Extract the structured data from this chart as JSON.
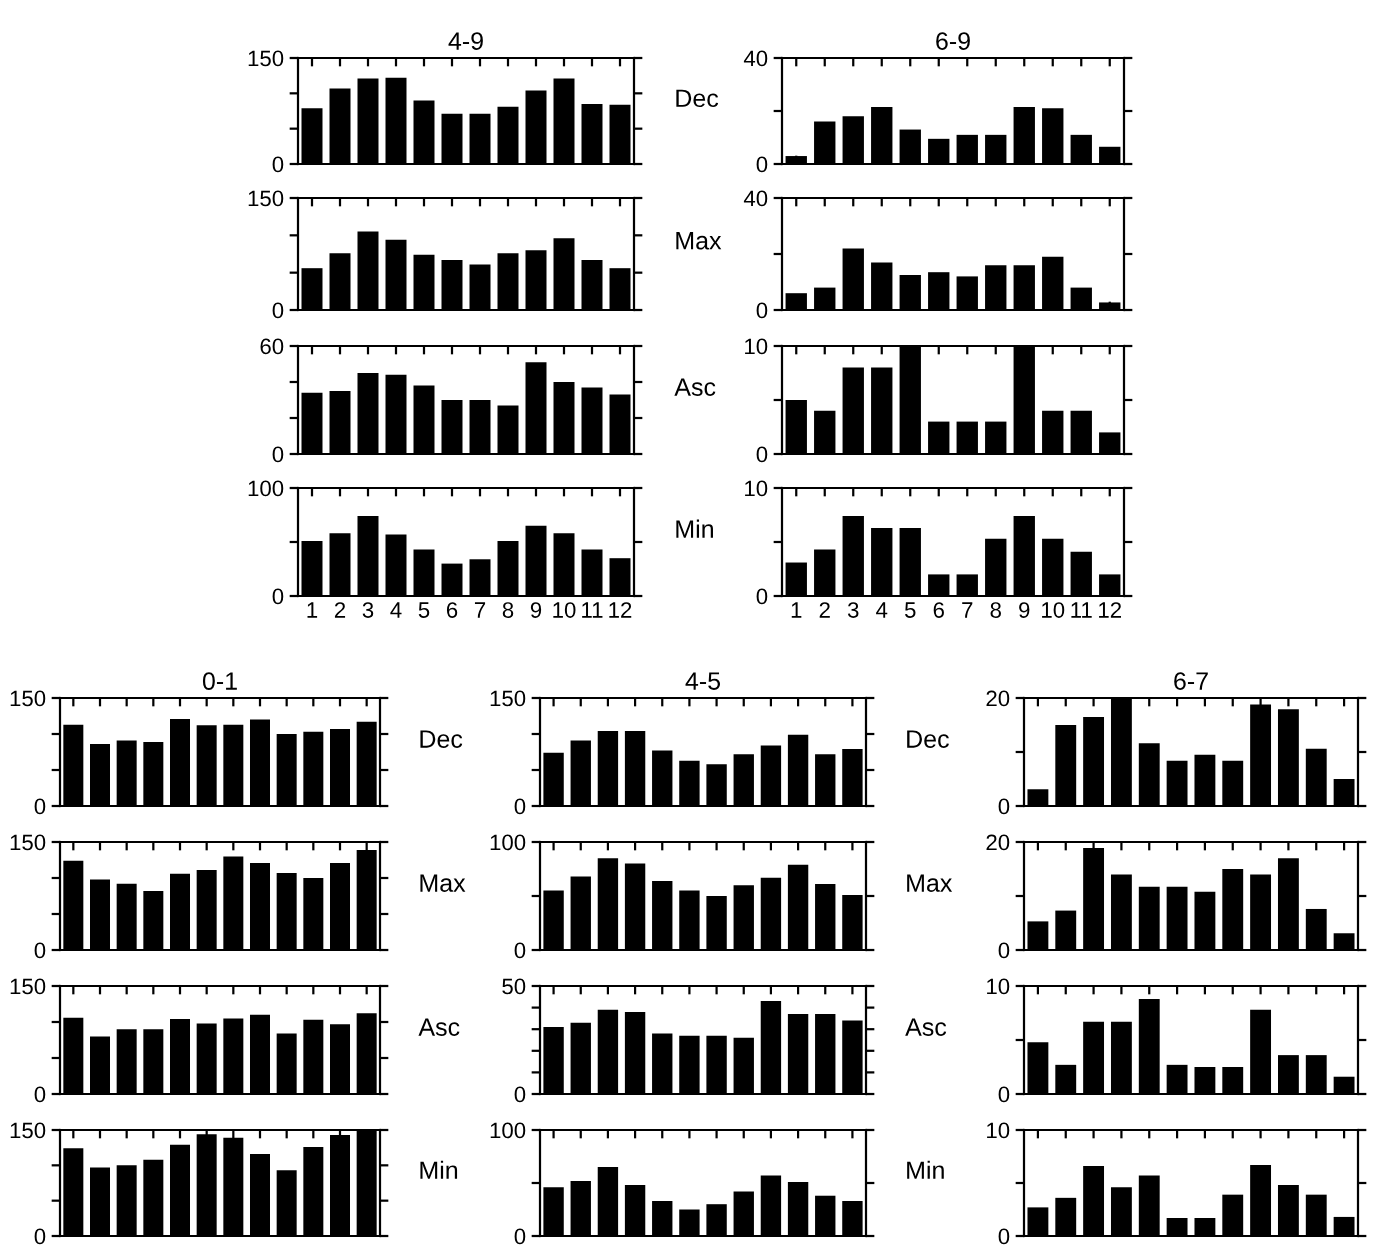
{
  "chart_data": [
    {
      "type": "bar",
      "title": "4-9",
      "annotations": [
        "Dec"
      ],
      "categories": [
        null,
        null,
        null,
        null,
        null,
        null,
        null,
        null,
        null,
        null,
        null,
        null
      ],
      "values": [
        79,
        107,
        121,
        122,
        90,
        71,
        71,
        81,
        104,
        121,
        85,
        84
      ],
      "color": "#000000",
      "ylim": [
        0,
        150
      ],
      "yticks": [
        0,
        {
          "value": 50,
          "label": null
        },
        {
          "value": 100,
          "label": null
        },
        150
      ]
    },
    {
      "type": "bar",
      "annotations": [
        "Max"
      ],
      "categories": [
        null,
        null,
        null,
        null,
        null,
        null,
        null,
        null,
        null,
        null,
        null,
        null
      ],
      "values": [
        56,
        76,
        105,
        94,
        74,
        67,
        61,
        76,
        80,
        96,
        67,
        56
      ],
      "color": "#000000",
      "ylim": [
        0,
        150
      ],
      "yticks": [
        0,
        {
          "value": 50,
          "label": null
        },
        {
          "value": 100,
          "label": null
        },
        150
      ]
    },
    {
      "type": "bar",
      "annotations": [
        "Asc"
      ],
      "categories": [
        null,
        null,
        null,
        null,
        null,
        null,
        null,
        null,
        null,
        null,
        null,
        null
      ],
      "values": [
        34,
        35,
        45,
        44,
        38,
        30,
        30,
        27,
        51,
        40,
        37,
        33
      ],
      "color": "#000000",
      "ylim": [
        0,
        60
      ],
      "yticks": [
        0,
        {
          "value": 20,
          "label": null
        },
        {
          "value": 40,
          "label": null
        },
        60
      ]
    },
    {
      "type": "bar",
      "annotations": [
        "Min"
      ],
      "categories": [
        "1",
        "2",
        "3",
        "4",
        "5",
        "6",
        "7",
        "8",
        "9",
        "10",
        "11",
        "12"
      ],
      "values": [
        51,
        58,
        74,
        57,
        43,
        30,
        34,
        51,
        65,
        58,
        43,
        35
      ],
      "color": "#000000",
      "ylim": [
        0,
        100
      ],
      "yticks": [
        0,
        {
          "value": 50,
          "label": null
        },
        100
      ]
    },
    {
      "type": "bar",
      "title": "6-9",
      "categories": [
        null,
        null,
        null,
        null,
        null,
        null,
        null,
        null,
        null,
        null,
        null,
        null
      ],
      "values": [
        3,
        16,
        18,
        21.5,
        13,
        9.5,
        11,
        11,
        21.5,
        21,
        11,
        6.5
      ],
      "color": "#000000",
      "ylim": [
        0,
        40
      ],
      "yticks": [
        0,
        {
          "value": 20,
          "label": null
        },
        40
      ]
    },
    {
      "type": "bar",
      "categories": [
        null,
        null,
        null,
        null,
        null,
        null,
        null,
        null,
        null,
        null,
        null,
        null
      ],
      "values": [
        6,
        8,
        22,
        17,
        12.5,
        13.5,
        12,
        16,
        16,
        19,
        8,
        2.7
      ],
      "color": "#000000",
      "ylim": [
        0,
        40
      ],
      "yticks": [
        0,
        {
          "value": 20,
          "label": null
        },
        40
      ]
    },
    {
      "type": "bar",
      "categories": [
        null,
        null,
        null,
        null,
        null,
        null,
        null,
        null,
        null,
        null,
        null,
        null
      ],
      "values": [
        5,
        4,
        8,
        8,
        10,
        3,
        3,
        3,
        10,
        4,
        4,
        2
      ],
      "color": "#000000",
      "ylim": [
        0,
        10
      ],
      "yticks": [
        0,
        {
          "value": 5,
          "label": null
        },
        10
      ]
    },
    {
      "type": "bar",
      "categories": [
        "1",
        "2",
        "3",
        "4",
        "5",
        "6",
        "7",
        "8",
        "9",
        "10",
        "11",
        "12"
      ],
      "values": [
        3.1,
        4.3,
        7.4,
        6.3,
        6.3,
        2,
        2,
        5.3,
        7.4,
        5.3,
        4.1,
        2
      ],
      "color": "#000000",
      "ylim": [
        0,
        10
      ],
      "yticks": [
        0,
        {
          "value": 5,
          "label": null
        },
        10
      ]
    },
    {
      "type": "bar",
      "title": "0-1",
      "annotations": [
        "Dec"
      ],
      "categories": [
        null,
        null,
        null,
        null,
        null,
        null,
        null,
        null,
        null,
        null,
        null,
        null
      ],
      "values": [
        113,
        86,
        91,
        89,
        121,
        112,
        113,
        120,
        100,
        103,
        107,
        117
      ],
      "color": "#000000",
      "ylim": [
        0,
        150
      ],
      "yticks": [
        0,
        {
          "value": 50,
          "label": null
        },
        {
          "value": 100,
          "label": null
        },
        150
      ]
    },
    {
      "type": "bar",
      "annotations": [
        "Max"
      ],
      "categories": [
        null,
        null,
        null,
        null,
        null,
        null,
        null,
        null,
        null,
        null,
        null,
        null
      ],
      "values": [
        124,
        98,
        92,
        82,
        106,
        111,
        130,
        121,
        107,
        100,
        121,
        139
      ],
      "color": "#000000",
      "ylim": [
        0,
        150
      ],
      "yticks": [
        0,
        {
          "value": 50,
          "label": null
        },
        {
          "value": 100,
          "label": null
        },
        150
      ]
    },
    {
      "type": "bar",
      "annotations": [
        "Asc"
      ],
      "categories": [
        null,
        null,
        null,
        null,
        null,
        null,
        null,
        null,
        null,
        null,
        null,
        null
      ],
      "values": [
        106,
        80,
        90,
        90,
        104,
        98,
        105,
        110,
        84,
        103,
        97,
        112
      ],
      "color": "#000000",
      "ylim": [
        0,
        150
      ],
      "yticks": [
        0,
        {
          "value": 50,
          "label": null
        },
        {
          "value": 100,
          "label": null
        },
        150
      ]
    },
    {
      "type": "bar",
      "annotations": [
        "Min"
      ],
      "categories": [
        null,
        null,
        null,
        null,
        null,
        null,
        null,
        null,
        null,
        null,
        null,
        null
      ],
      "values": [
        124,
        97,
        100,
        108,
        129,
        144,
        139,
        116,
        93,
        126,
        143,
        150
      ],
      "color": "#000000",
      "ylim": [
        0,
        150
      ],
      "yticks": [
        0,
        {
          "value": 50,
          "label": null
        },
        {
          "value": 100,
          "label": null
        },
        150
      ]
    },
    {
      "type": "bar",
      "title": "4-5",
      "annotations": [
        "Dec"
      ],
      "categories": [
        null,
        null,
        null,
        null,
        null,
        null,
        null,
        null,
        null,
        null,
        null,
        null
      ],
      "values": [
        74,
        91,
        104,
        104,
        77,
        63,
        58,
        72,
        84,
        99,
        72,
        79
      ],
      "color": "#000000",
      "ylim": [
        0,
        150
      ],
      "yticks": [
        0,
        {
          "value": 50,
          "label": null
        },
        {
          "value": 100,
          "label": null
        },
        150
      ]
    },
    {
      "type": "bar",
      "annotations": [
        "Max"
      ],
      "categories": [
        null,
        null,
        null,
        null,
        null,
        null,
        null,
        null,
        null,
        null,
        null,
        null
      ],
      "values": [
        55,
        68,
        85,
        80,
        64,
        55,
        50,
        60,
        67,
        79,
        61,
        51
      ],
      "color": "#000000",
      "ylim": [
        0,
        100
      ],
      "yticks": [
        0,
        {
          "value": 50,
          "label": null
        },
        100
      ]
    },
    {
      "type": "bar",
      "annotations": [
        "Asc"
      ],
      "categories": [
        null,
        null,
        null,
        null,
        null,
        null,
        null,
        null,
        null,
        null,
        null,
        null
      ],
      "values": [
        31,
        33,
        39,
        38,
        28,
        27,
        27,
        26,
        43,
        37,
        37,
        34
      ],
      "color": "#000000",
      "ylim": [
        0,
        50
      ],
      "yticks": [
        0,
        {
          "value": 10,
          "label": null
        },
        {
          "value": 20,
          "label": null
        },
        {
          "value": 30,
          "label": null
        },
        {
          "value": 40,
          "label": null
        },
        50
      ]
    },
    {
      "type": "bar",
      "annotations": [
        "Min"
      ],
      "categories": [
        null,
        null,
        null,
        null,
        null,
        null,
        null,
        null,
        null,
        null,
        null,
        null
      ],
      "values": [
        46,
        52,
        65,
        48,
        33,
        25,
        30,
        42,
        57,
        51,
        38,
        33
      ],
      "color": "#000000",
      "ylim": [
        0,
        100
      ],
      "yticks": [
        0,
        {
          "value": 50,
          "label": null
        },
        100
      ]
    },
    {
      "type": "bar",
      "title": "6-7",
      "categories": [
        null,
        null,
        null,
        null,
        null,
        null,
        null,
        null,
        null,
        null,
        null,
        null
      ],
      "values": [
        3.1,
        15,
        16.5,
        20,
        11.6,
        8.4,
        9.5,
        8.4,
        18.8,
        17.9,
        10.6,
        5
      ],
      "color": "#000000",
      "ylim": [
        0,
        20
      ],
      "yticks": [
        0,
        {
          "value": 10,
          "label": null
        },
        20
      ]
    },
    {
      "type": "bar",
      "categories": [
        null,
        null,
        null,
        null,
        null,
        null,
        null,
        null,
        null,
        null,
        null,
        null
      ],
      "values": [
        5.3,
        7.3,
        18.9,
        14,
        11.7,
        11.7,
        10.8,
        15,
        14,
        17,
        7.6,
        3.1
      ],
      "color": "#000000",
      "ylim": [
        0,
        20
      ],
      "yticks": [
        0,
        {
          "value": 10,
          "label": null
        },
        20
      ]
    },
    {
      "type": "bar",
      "categories": [
        null,
        null,
        null,
        null,
        null,
        null,
        null,
        null,
        null,
        null,
        null,
        null
      ],
      "values": [
        4.8,
        2.7,
        6.7,
        6.7,
        8.8,
        2.7,
        2.5,
        2.5,
        7.8,
        3.6,
        3.6,
        1.6
      ],
      "color": "#000000",
      "ylim": [
        0,
        10
      ],
      "yticks": [
        0,
        {
          "value": 5,
          "label": null
        },
        10
      ]
    },
    {
      "type": "bar",
      "categories": [
        null,
        null,
        null,
        null,
        null,
        null,
        null,
        null,
        null,
        null,
        null,
        null
      ],
      "values": [
        2.7,
        3.6,
        6.6,
        4.6,
        5.7,
        1.7,
        1.7,
        3.9,
        6.7,
        4.8,
        3.9,
        1.8
      ],
      "color": "#000000",
      "ylim": [
        0,
        10
      ],
      "yticks": [
        0,
        {
          "value": 5,
          "label": null
        },
        10
      ]
    }
  ]
}
